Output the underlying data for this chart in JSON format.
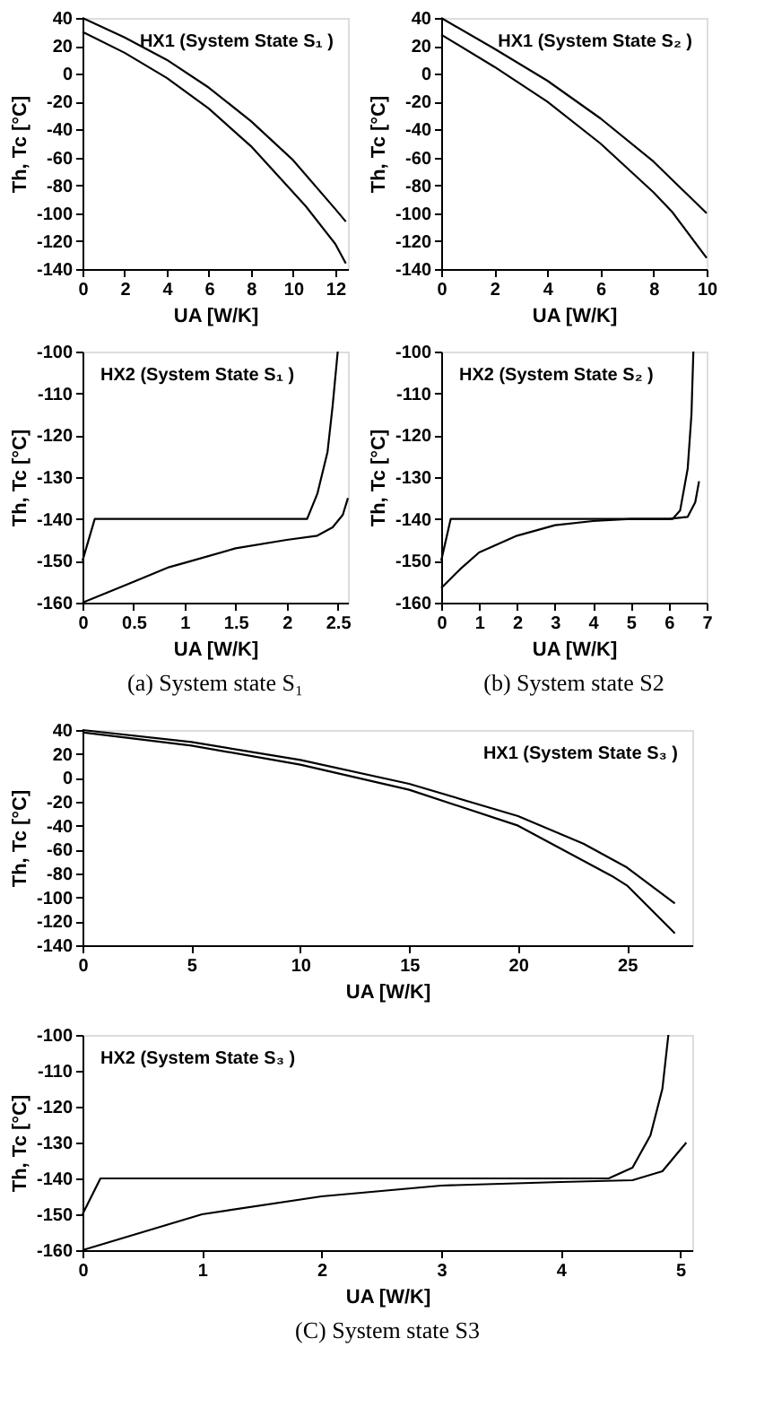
{
  "chart_data": [
    {
      "type": "line",
      "title": "HX1 (System State S₁ )",
      "xlabel": "UA [W/K]",
      "ylabel": "Th, Tc [°C]",
      "xlim": [
        0,
        12.6
      ],
      "xticks": [
        0,
        2,
        4,
        6,
        8,
        10,
        12
      ],
      "ylim": [
        -140,
        40
      ],
      "yticks": [
        -140,
        -120,
        -100,
        -80,
        -60,
        -40,
        -20,
        0,
        20,
        40
      ],
      "grid": false,
      "legend": false,
      "line_style": "solid",
      "marker": "none",
      "series": [
        {
          "color": "#000000",
          "x": [
            0,
            2,
            4,
            6,
            8,
            10,
            12,
            12.5
          ],
          "values": [
            40,
            26,
            10,
            -10,
            -34,
            -62,
            -97,
            -106
          ]
        },
        {
          "color": "#000000",
          "x": [
            0,
            2,
            4,
            6,
            8,
            10,
            10.6,
            12,
            12.5
          ],
          "values": [
            30,
            15,
            -3,
            -25,
            -52,
            -85,
            -95,
            -122,
            -136
          ]
        }
      ]
    },
    {
      "type": "line",
      "title": "HX2 (System State S₁ )",
      "xlabel": "UA [W/K]",
      "ylabel": "Th, Tc [°C]",
      "xlim": [
        0,
        2.6
      ],
      "xticks": [
        0,
        0.5,
        1,
        1.5,
        2,
        2.5
      ],
      "ylim": [
        -160,
        -100
      ],
      "yticks": [
        -160,
        -150,
        -140,
        -130,
        -120,
        -110,
        -100
      ],
      "grid": false,
      "legend": false,
      "line_style": "solid",
      "marker": "none",
      "annotations": [
        "(a) System state S₁"
      ],
      "series": [
        {
          "color": "#000000",
          "x": [
            0,
            0.12,
            2.2,
            2.3,
            2.4,
            2.45,
            2.5
          ],
          "values": [
            -150,
            -140,
            -140,
            -134,
            -124,
            -113,
            -100
          ]
        },
        {
          "color": "#000000",
          "x": [
            0,
            0.5,
            0.85,
            1.0,
            1.5,
            2.0,
            2.3,
            2.45,
            2.55,
            2.6
          ],
          "values": [
            -160,
            -155,
            -151.5,
            -150.5,
            -147,
            -145,
            -144,
            -142,
            -139,
            -135
          ]
        }
      ]
    },
    {
      "type": "line",
      "title": "HX1 (System State S₂ )",
      "xlabel": "UA [W/K]",
      "ylabel": "Th, Tc [°C]",
      "xlim": [
        0,
        10
      ],
      "xticks": [
        0,
        2,
        4,
        6,
        8,
        10
      ],
      "ylim": [
        -140,
        40
      ],
      "yticks": [
        -140,
        -120,
        -100,
        -80,
        -60,
        -40,
        -20,
        0,
        20,
        40
      ],
      "grid": false,
      "legend": false,
      "line_style": "solid",
      "marker": "none",
      "series": [
        {
          "color": "#000000",
          "x": [
            0,
            2,
            4,
            6,
            8,
            10
          ],
          "values": [
            40,
            18,
            -5,
            -32,
            -63,
            -100
          ]
        },
        {
          "color": "#000000",
          "x": [
            0,
            2,
            4,
            6,
            8,
            8.7,
            10
          ],
          "values": [
            28,
            5,
            -20,
            -50,
            -85,
            -99,
            -132
          ]
        }
      ]
    },
    {
      "type": "line",
      "title": "HX2 (System State S₂ )",
      "xlabel": "UA [W/K]",
      "ylabel": "Th, Tc [°C]",
      "xlim": [
        0,
        7
      ],
      "xticks": [
        0,
        1,
        2,
        3,
        4,
        5,
        6,
        7
      ],
      "ylim": [
        -160,
        -100
      ],
      "yticks": [
        -160,
        -150,
        -140,
        -130,
        -120,
        -110,
        -100
      ],
      "grid": false,
      "legend": false,
      "line_style": "solid",
      "marker": "none",
      "annotations": [
        "(b) System state S2"
      ],
      "series": [
        {
          "color": "#000000",
          "x": [
            0,
            0.25,
            6.1,
            6.3,
            6.5,
            6.6,
            6.65
          ],
          "values": [
            -150,
            -140,
            -140,
            -138,
            -128,
            -115,
            -100
          ]
        },
        {
          "color": "#000000",
          "x": [
            0,
            0.5,
            1,
            2,
            3,
            4,
            5,
            6,
            6.5,
            6.7,
            6.8
          ],
          "values": [
            -156.5,
            -152,
            -148,
            -144,
            -141.5,
            -140.5,
            -140,
            -140,
            -139.5,
            -136,
            -131
          ]
        }
      ]
    },
    {
      "type": "line",
      "title": "HX1 (System State S₃ )",
      "xlabel": "UA [W/K]",
      "ylabel": "Th, Tc [°C]",
      "xlim": [
        0,
        28
      ],
      "xticks": [
        0,
        5,
        10,
        15,
        20,
        25
      ],
      "ylim": [
        -140,
        40
      ],
      "yticks": [
        -140,
        -120,
        -100,
        -80,
        -60,
        -40,
        -20,
        0,
        20,
        40
      ],
      "grid": false,
      "legend": false,
      "line_style": "solid",
      "marker": "none",
      "series": [
        {
          "color": "#000000",
          "x": [
            0,
            5,
            10,
            15,
            20,
            23,
            25,
            27.2
          ],
          "values": [
            40,
            30,
            15,
            -5,
            -32,
            -55,
            -75,
            -105
          ]
        },
        {
          "color": "#000000",
          "x": [
            0,
            5,
            10,
            15,
            20,
            24.3,
            25,
            27.2
          ],
          "values": [
            38,
            27,
            11,
            -10,
            -40,
            -82,
            -90,
            -130
          ]
        }
      ]
    },
    {
      "type": "line",
      "title": "HX2 (System State S₃ )",
      "xlabel": "UA [W/K]",
      "ylabel": "Th, Tc [°C]",
      "xlim": [
        0,
        5.1
      ],
      "xticks": [
        0,
        1,
        2,
        3,
        4,
        5
      ],
      "ylim": [
        -160,
        -100
      ],
      "yticks": [
        -160,
        -150,
        -140,
        -130,
        -120,
        -110,
        -100
      ],
      "grid": false,
      "legend": false,
      "line_style": "solid",
      "marker": "none",
      "annotations": [
        "(C) System state S3"
      ],
      "series": [
        {
          "color": "#000000",
          "x": [
            0,
            0.15,
            4.4,
            4.6,
            4.75,
            4.85,
            4.9
          ],
          "values": [
            -150,
            -140,
            -140,
            -137,
            -128,
            -115,
            -100
          ]
        },
        {
          "color": "#000000",
          "x": [
            0,
            0.5,
            1,
            2,
            3,
            4,
            4.6,
            4.85,
            5,
            5.05
          ],
          "values": [
            -160,
            -155,
            -150,
            -145,
            -142,
            -141,
            -140.5,
            -138,
            -132,
            -130
          ]
        }
      ]
    }
  ]
}
